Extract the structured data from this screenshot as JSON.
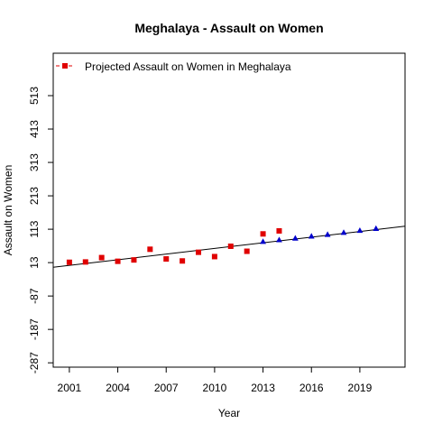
{
  "chart_data": {
    "type": "scatter",
    "title": "Meghalaya  -  Assault on Women",
    "xlabel": "Year",
    "ylabel": "Assault on Women",
    "xlim": [
      2000.0,
      2021.8
    ],
    "ylim": [
      -300,
      640
    ],
    "x_ticks": [
      2001,
      2004,
      2007,
      2010,
      2013,
      2016,
      2019
    ],
    "y_ticks": [
      -287,
      -187,
      -87,
      13,
      113,
      213,
      313,
      413,
      513
    ],
    "legend": {
      "position": "top-left",
      "entries": [
        "Projected  Assault on Women  in  Meghalaya"
      ]
    },
    "series": [
      {
        "name": "Projected  Assault on Women  in  Meghalaya",
        "marker": "square",
        "color": "#e00000",
        "x": [
          2001,
          2002,
          2003,
          2004,
          2005,
          2006,
          2007,
          2008,
          2009,
          2010,
          2011,
          2012,
          2013,
          2014
        ],
        "y": [
          14,
          15,
          28,
          17,
          21,
          53,
          24,
          18,
          44,
          31,
          62,
          47,
          99,
          108
        ]
      },
      {
        "marker": "triangle",
        "color": "#0000cc",
        "x": [
          2013,
          2014,
          2015,
          2016,
          2017,
          2018,
          2019,
          2020
        ],
        "y": [
          76,
          81,
          86,
          92,
          97,
          103,
          109,
          115
        ]
      }
    ],
    "trend_line": {
      "color": "#000000",
      "x": [
        2000.0,
        2021.8
      ],
      "y": [
        -1,
        122
      ]
    }
  }
}
